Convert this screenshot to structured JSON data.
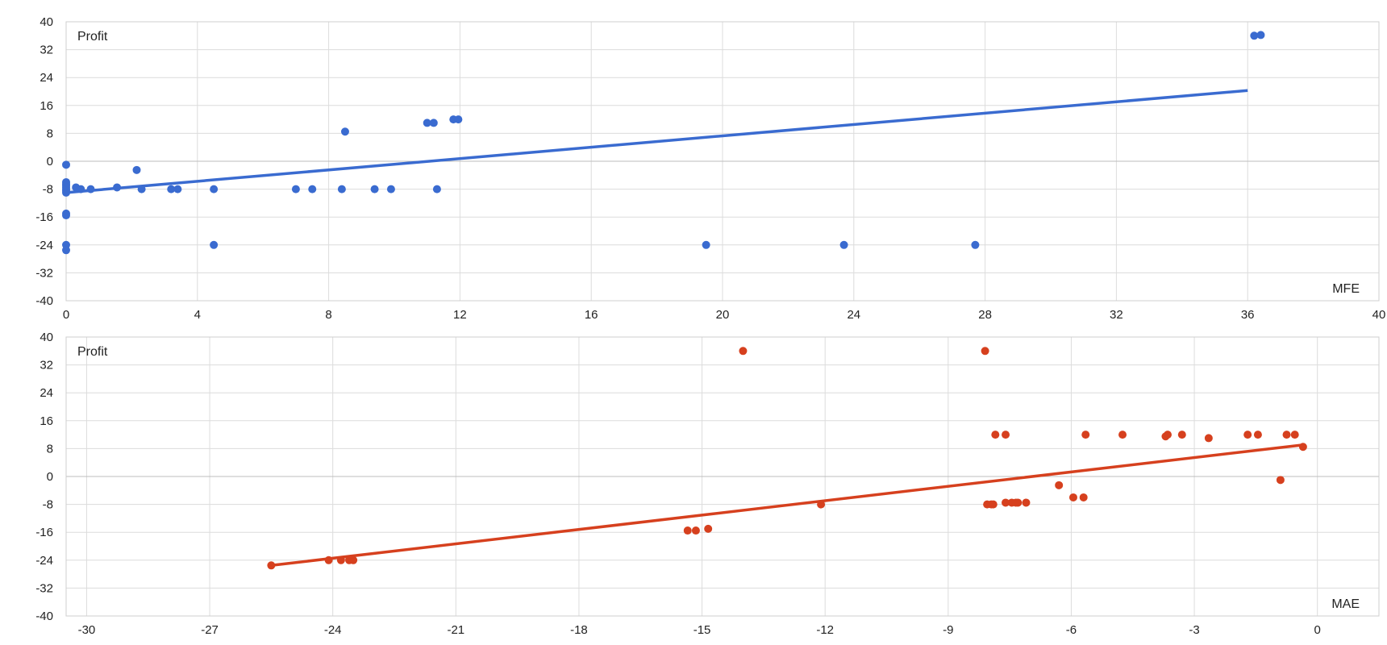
{
  "chart_data": [
    {
      "type": "scatter",
      "ylabel": "Profit",
      "xlabel": "MFE",
      "xlim": [
        0,
        40
      ],
      "ylim": [
        -40,
        40
      ],
      "x_ticks": [
        0,
        4,
        8,
        12,
        16,
        20,
        24,
        28,
        32,
        36,
        40
      ],
      "y_ticks": [
        40,
        32,
        24,
        16,
        8,
        0,
        -8,
        -16,
        -24,
        -32,
        -40
      ],
      "grid": true,
      "point_color": "#3a6bd0",
      "trendline": {
        "from": [
          0,
          -9
        ],
        "to": [
          36,
          20.3
        ],
        "color": "#3a6bd0"
      },
      "points": [
        [
          0,
          -1
        ],
        [
          0,
          -6
        ],
        [
          0,
          -6.5
        ],
        [
          0,
          -7
        ],
        [
          0,
          -7.5
        ],
        [
          0,
          -8
        ],
        [
          0,
          -8.5
        ],
        [
          0,
          -9
        ],
        [
          0,
          -15
        ],
        [
          0,
          -15.5
        ],
        [
          0,
          -24
        ],
        [
          0,
          -25.5
        ],
        [
          0.3,
          -7.5
        ],
        [
          0.45,
          -8
        ],
        [
          0.75,
          -8
        ],
        [
          1.55,
          -7.5
        ],
        [
          2.15,
          -2.5
        ],
        [
          2.3,
          -8
        ],
        [
          3.2,
          -8
        ],
        [
          3.4,
          -8
        ],
        [
          4.5,
          -24
        ],
        [
          4.5,
          -8
        ],
        [
          7,
          -8
        ],
        [
          7.5,
          -8
        ],
        [
          8.4,
          -8
        ],
        [
          8.5,
          8.5
        ],
        [
          9.4,
          -8
        ],
        [
          9.9,
          -8
        ],
        [
          11,
          11
        ],
        [
          11.2,
          11
        ],
        [
          11.3,
          -8
        ],
        [
          11.8,
          12
        ],
        [
          11.95,
          12
        ],
        [
          19.5,
          -24
        ],
        [
          23.7,
          -24
        ],
        [
          27.7,
          -24
        ],
        [
          36.2,
          36
        ],
        [
          36.4,
          36.2
        ]
      ]
    },
    {
      "type": "scatter",
      "ylabel": "Profit",
      "xlabel": "MAE",
      "xlim": [
        -30.5,
        1.5
      ],
      "ylim": [
        -40,
        40
      ],
      "x_ticks": [
        -30,
        -27,
        -24,
        -21,
        -18,
        -15,
        -12,
        -9,
        -6,
        -3,
        0
      ],
      "y_ticks": [
        40,
        32,
        24,
        16,
        8,
        0,
        -8,
        -16,
        -24,
        -32,
        -40
      ],
      "grid": true,
      "point_color": "#d6401e",
      "trendline": {
        "from": [
          -25.5,
          -25.5
        ],
        "to": [
          -0.4,
          9
        ],
        "color": "#d6401e"
      },
      "points": [
        [
          -25.5,
          -25.5
        ],
        [
          -24.1,
          -24
        ],
        [
          -23.8,
          -24
        ],
        [
          -23.6,
          -24
        ],
        [
          -23.5,
          -24
        ],
        [
          -15.35,
          -15.5
        ],
        [
          -15.15,
          -15.5
        ],
        [
          -14.85,
          -15
        ],
        [
          -14,
          36
        ],
        [
          -12.1,
          -8
        ],
        [
          -8.1,
          36
        ],
        [
          -8.05,
          -8
        ],
        [
          -7.95,
          -8
        ],
        [
          -7.9,
          -8
        ],
        [
          -7.85,
          12
        ],
        [
          -7.6,
          12
        ],
        [
          -7.6,
          -7.5
        ],
        [
          -7.45,
          -7.5
        ],
        [
          -7.35,
          -7.5
        ],
        [
          -7.3,
          -7.5
        ],
        [
          -7.1,
          -7.5
        ],
        [
          -6.3,
          -2.5
        ],
        [
          -5.95,
          -6
        ],
        [
          -5.7,
          -6
        ],
        [
          -5.65,
          12
        ],
        [
          -4.75,
          12
        ],
        [
          -3.7,
          11.5
        ],
        [
          -3.65,
          12
        ],
        [
          -3.3,
          12
        ],
        [
          -2.65,
          11
        ],
        [
          -1.7,
          12
        ],
        [
          -1.45,
          12
        ],
        [
          -0.9,
          -1
        ],
        [
          -0.75,
          12
        ],
        [
          -0.55,
          12
        ],
        [
          -0.35,
          8.5
        ]
      ]
    }
  ]
}
